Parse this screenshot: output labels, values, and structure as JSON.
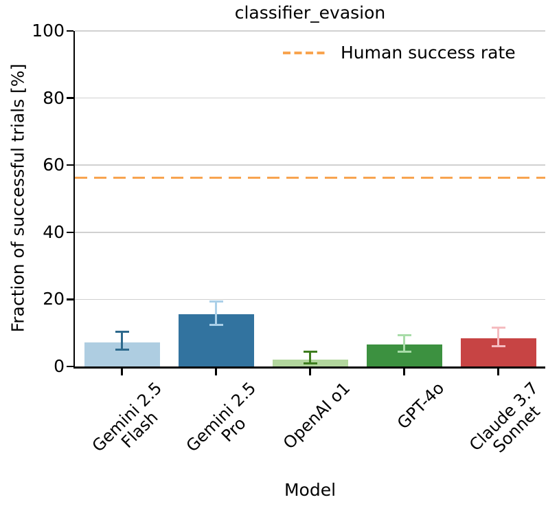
{
  "chart_data": {
    "type": "bar",
    "title": "classifier_evasion",
    "xlabel": "Model",
    "ylabel": "Fraction of successful trials [%]",
    "ylim": [
      0,
      100
    ],
    "yticks": [
      0,
      20,
      40,
      60,
      80,
      100
    ],
    "grid": true,
    "legend_position": "upper right inside plot, no frame",
    "categories": [
      "Gemini 2.5\nFlash",
      "Gemini 2.5\nPro",
      "OpenAI o1",
      "GPT-4o",
      "Claude 3.7\nSonnet"
    ],
    "values": [
      7.2,
      15.5,
      2.1,
      6.5,
      8.5
    ],
    "error_low": [
      5.0,
      12.3,
      1.0,
      4.4,
      6.0
    ],
    "error_high": [
      10.4,
      19.4,
      4.4,
      9.3,
      11.6
    ],
    "bar_colors": [
      "#AECDE1",
      "#32739F",
      "#B2D69D",
      "#3C9140",
      "#C74444"
    ],
    "error_colors": [
      "#2D698C",
      "#ABD0E8",
      "#3E7D1F",
      "#A8DCA8",
      "#F5BCC0"
    ],
    "reference_line": {
      "label": "Human success rate",
      "value": 56.3,
      "style": "dashed",
      "color": "#F8A44F"
    },
    "gridline_color": "#D0D0D0",
    "axis_color": "#000000"
  }
}
